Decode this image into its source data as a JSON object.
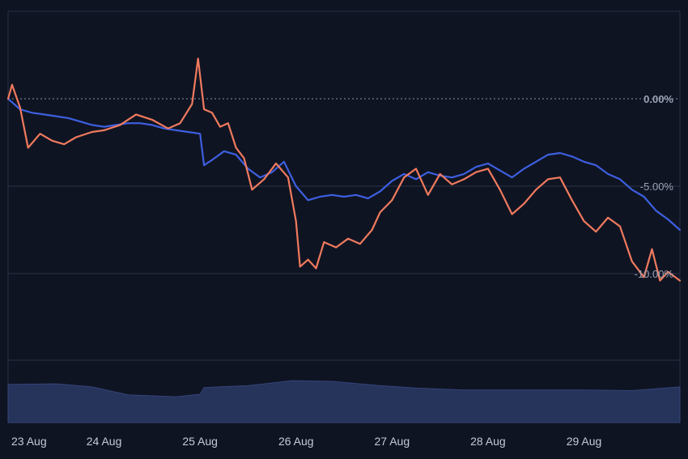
{
  "chart_data": {
    "type": "line",
    "title": "",
    "xlabel": "",
    "ylabel": "",
    "x_ticks": [
      "23 Aug",
      "24 Aug",
      "25 Aug",
      "26 Aug",
      "27 Aug",
      "28 Aug",
      "29 Aug"
    ],
    "y_ticks": [
      "0.00%",
      "-5.00%",
      "-10.00%"
    ],
    "y_tick_values": [
      0,
      -5,
      -10
    ],
    "ylim": [
      -15,
      5
    ],
    "xlim": [
      "23 Aug",
      "29 Aug 23:59"
    ],
    "grid": true,
    "legend": "none",
    "colors": {
      "background": "#0f1422",
      "series_a": "#3d5fe0",
      "series_b": "#f07a5e",
      "volume": "#26335a"
    },
    "series": [
      {
        "color": "#3d5fe0",
        "points": [
          [
            "23 Aug 00:00",
            0.0
          ],
          [
            "23 Aug 03:00",
            -0.6
          ],
          [
            "23 Aug 06:00",
            -0.8
          ],
          [
            "23 Aug 09:00",
            -0.9
          ],
          [
            "23 Aug 12:00",
            -1.0
          ],
          [
            "23 Aug 15:00",
            -1.1
          ],
          [
            "23 Aug 18:00",
            -1.3
          ],
          [
            "23 Aug 21:00",
            -1.5
          ],
          [
            "24 Aug 00:00",
            -1.6
          ],
          [
            "24 Aug 03:00",
            -1.5
          ],
          [
            "24 Aug 06:00",
            -1.4
          ],
          [
            "24 Aug 09:00",
            -1.4
          ],
          [
            "24 Aug 12:00",
            -1.5
          ],
          [
            "24 Aug 15:00",
            -1.7
          ],
          [
            "24 Aug 18:00",
            -1.8
          ],
          [
            "24 Aug 21:00",
            -1.9
          ],
          [
            "25 Aug 00:00",
            -2.0
          ],
          [
            "25 Aug 01:00",
            -3.8
          ],
          [
            "25 Aug 03:00",
            -3.5
          ],
          [
            "25 Aug 06:00",
            -3.0
          ],
          [
            "25 Aug 09:00",
            -3.2
          ],
          [
            "25 Aug 12:00",
            -4.0
          ],
          [
            "25 Aug 15:00",
            -4.5
          ],
          [
            "25 Aug 18:00",
            -4.2
          ],
          [
            "25 Aug 21:00",
            -3.6
          ],
          [
            "26 Aug 00:00",
            -5.0
          ],
          [
            "26 Aug 03:00",
            -5.8
          ],
          [
            "26 Aug 06:00",
            -5.6
          ],
          [
            "26 Aug 09:00",
            -5.5
          ],
          [
            "26 Aug 12:00",
            -5.6
          ],
          [
            "26 Aug 15:00",
            -5.5
          ],
          [
            "26 Aug 18:00",
            -5.7
          ],
          [
            "26 Aug 21:00",
            -5.3
          ],
          [
            "27 Aug 00:00",
            -4.7
          ],
          [
            "27 Aug 03:00",
            -4.3
          ],
          [
            "27 Aug 06:00",
            -4.6
          ],
          [
            "27 Aug 09:00",
            -4.2
          ],
          [
            "27 Aug 12:00",
            -4.4
          ],
          [
            "27 Aug 15:00",
            -4.5
          ],
          [
            "27 Aug 18:00",
            -4.3
          ],
          [
            "27 Aug 21:00",
            -3.9
          ],
          [
            "28 Aug 00:00",
            -3.7
          ],
          [
            "28 Aug 03:00",
            -4.1
          ],
          [
            "28 Aug 06:00",
            -4.5
          ],
          [
            "28 Aug 09:00",
            -4.0
          ],
          [
            "28 Aug 12:00",
            -3.6
          ],
          [
            "28 Aug 15:00",
            -3.2
          ],
          [
            "28 Aug 18:00",
            -3.1
          ],
          [
            "28 Aug 21:00",
            -3.3
          ],
          [
            "29 Aug 00:00",
            -3.6
          ],
          [
            "29 Aug 03:00",
            -3.8
          ],
          [
            "29 Aug 06:00",
            -4.3
          ],
          [
            "29 Aug 09:00",
            -4.6
          ],
          [
            "29 Aug 12:00",
            -5.2
          ],
          [
            "29 Aug 15:00",
            -5.6
          ],
          [
            "29 Aug 18:00",
            -6.4
          ],
          [
            "29 Aug 21:00",
            -6.9
          ],
          [
            "29 Aug 23:59",
            -7.5
          ]
        ]
      },
      {
        "color": "#f07a5e",
        "points": [
          [
            "23 Aug 00:00",
            0.0
          ],
          [
            "23 Aug 01:00",
            0.8
          ],
          [
            "23 Aug 03:00",
            -0.5
          ],
          [
            "23 Aug 05:00",
            -2.8
          ],
          [
            "23 Aug 08:00",
            -2.0
          ],
          [
            "23 Aug 11:00",
            -2.4
          ],
          [
            "23 Aug 14:00",
            -2.6
          ],
          [
            "23 Aug 17:00",
            -2.2
          ],
          [
            "23 Aug 21:00",
            -1.9
          ],
          [
            "24 Aug 00:00",
            -1.8
          ],
          [
            "24 Aug 04:00",
            -1.5
          ],
          [
            "24 Aug 08:00",
            -0.9
          ],
          [
            "24 Aug 12:00",
            -1.2
          ],
          [
            "24 Aug 16:00",
            -1.7
          ],
          [
            "24 Aug 19:00",
            -1.4
          ],
          [
            "24 Aug 22:00",
            -0.3
          ],
          [
            "24 Aug 23:30",
            2.3
          ],
          [
            "25 Aug 01:00",
            -0.6
          ],
          [
            "25 Aug 03:00",
            -0.8
          ],
          [
            "25 Aug 05:00",
            -1.6
          ],
          [
            "25 Aug 07:00",
            -1.4
          ],
          [
            "25 Aug 09:00",
            -2.8
          ],
          [
            "25 Aug 11:00",
            -3.4
          ],
          [
            "25 Aug 13:00",
            -5.2
          ],
          [
            "25 Aug 16:00",
            -4.6
          ],
          [
            "25 Aug 19:00",
            -3.7
          ],
          [
            "25 Aug 22:00",
            -4.5
          ],
          [
            "26 Aug 00:00",
            -7.0
          ],
          [
            "26 Aug 01:00",
            -9.6
          ],
          [
            "26 Aug 03:00",
            -9.2
          ],
          [
            "26 Aug 05:00",
            -9.7
          ],
          [
            "26 Aug 07:00",
            -8.2
          ],
          [
            "26 Aug 10:00",
            -8.5
          ],
          [
            "26 Aug 13:00",
            -8.0
          ],
          [
            "26 Aug 16:00",
            -8.3
          ],
          [
            "26 Aug 19:00",
            -7.5
          ],
          [
            "26 Aug 21:00",
            -6.5
          ],
          [
            "27 Aug 00:00",
            -5.8
          ],
          [
            "27 Aug 03:00",
            -4.5
          ],
          [
            "27 Aug 06:00",
            -4.0
          ],
          [
            "27 Aug 09:00",
            -5.5
          ],
          [
            "27 Aug 12:00",
            -4.3
          ],
          [
            "27 Aug 15:00",
            -4.9
          ],
          [
            "27 Aug 18:00",
            -4.6
          ],
          [
            "27 Aug 21:00",
            -4.2
          ],
          [
            "28 Aug 00:00",
            -4.0
          ],
          [
            "28 Aug 03:00",
            -5.2
          ],
          [
            "28 Aug 06:00",
            -6.6
          ],
          [
            "28 Aug 09:00",
            -6.0
          ],
          [
            "28 Aug 12:00",
            -5.2
          ],
          [
            "28 Aug 15:00",
            -4.6
          ],
          [
            "28 Aug 18:00",
            -4.5
          ],
          [
            "28 Aug 21:00",
            -5.8
          ],
          [
            "29 Aug 00:00",
            -7.0
          ],
          [
            "29 Aug 03:00",
            -7.6
          ],
          [
            "29 Aug 06:00",
            -6.8
          ],
          [
            "29 Aug 09:00",
            -7.3
          ],
          [
            "29 Aug 12:00",
            -9.3
          ],
          [
            "29 Aug 15:00",
            -10.2
          ],
          [
            "29 Aug 17:00",
            -8.6
          ],
          [
            "29 Aug 19:00",
            -10.4
          ],
          [
            "29 Aug 21:00",
            -9.9
          ],
          [
            "29 Aug 23:59",
            -10.4
          ]
        ]
      }
    ],
    "volume": {
      "type": "area",
      "points": [
        [
          "23 Aug 00:00",
          62
        ],
        [
          "23 Aug 12:00",
          63
        ],
        [
          "23 Aug 21:00",
          58
        ],
        [
          "24 Aug 06:00",
          45
        ],
        [
          "24 Aug 18:00",
          42
        ],
        [
          "25 Aug 00:00",
          46
        ],
        [
          "25 Aug 01:00",
          57
        ],
        [
          "25 Aug 12:00",
          60
        ],
        [
          "25 Aug 23:00",
          68
        ],
        [
          "26 Aug 09:00",
          67
        ],
        [
          "26 Aug 21:00",
          60
        ],
        [
          "27 Aug 06:00",
          56
        ],
        [
          "27 Aug 18:00",
          53
        ],
        [
          "28 Aug 12:00",
          53
        ],
        [
          "29 Aug 00:00",
          53
        ],
        [
          "29 Aug 12:00",
          52
        ],
        [
          "29 Aug 23:59",
          58
        ]
      ]
    }
  }
}
